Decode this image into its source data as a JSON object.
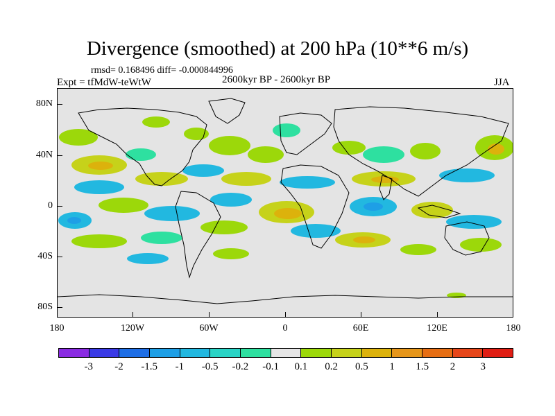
{
  "title": "Divergence (smoothed) at 200 hPa (10**6 m/s)",
  "stats_line": "rmsd= 0.168496 diff= -0.000844996",
  "experiment_label": "Expt = tfMdW-teWtW",
  "comparison_label": "2600kyr BP - 2600kyr BP",
  "season_label": "JJA",
  "y_axis_labels": [
    "80N",
    "40N",
    "0",
    "40S",
    "80S"
  ],
  "x_axis_labels": [
    "180",
    "120W",
    "60W",
    "0",
    "60E",
    "120E",
    "180"
  ],
  "colorbar": {
    "colors": [
      "#8a2be2",
      "#3a3ae6",
      "#1e6ee6",
      "#1e9fe6",
      "#22b8e0",
      "#2ad4c6",
      "#2ee0a0",
      "#e6e6e6",
      "#9cd80a",
      "#c6d21a",
      "#dcb20c",
      "#e6961a",
      "#e66e14",
      "#e6461a",
      "#e01e14"
    ],
    "labels": [
      "-3",
      "-2",
      "-1.5",
      "-1",
      "-0.5",
      "-0.2",
      "-0.1",
      "0.1",
      "0.2",
      "0.5",
      "1",
      "1.5",
      "2",
      "3"
    ]
  },
  "colors": {
    "background": "#e4e4e4",
    "land_outline": "#000000"
  }
}
